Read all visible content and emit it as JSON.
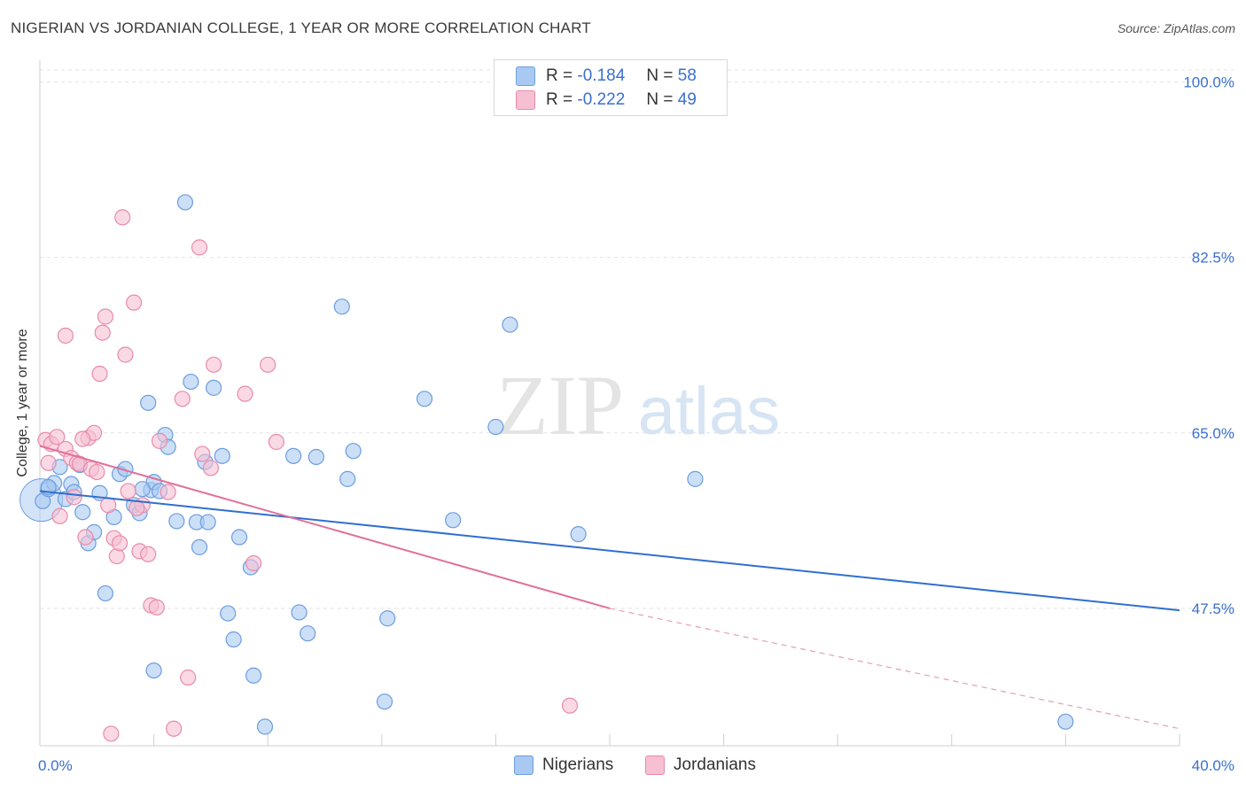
{
  "title": "NIGERIAN VS JORDANIAN COLLEGE, 1 YEAR OR MORE CORRELATION CHART",
  "source": "Source: ZipAtlas.com",
  "watermark": {
    "zip": "ZIP",
    "atlas": "atlas"
  },
  "legend": {
    "rows": [
      {
        "r_label": "R =",
        "r_value": "-0.184",
        "n_label": "N =",
        "n_value": "58",
        "color": "#a9c9f2",
        "stroke": "#6d9de0"
      },
      {
        "r_label": "R =",
        "r_value": "-0.222",
        "n_label": "N =",
        "n_value": "49",
        "color": "#f7c0d2",
        "stroke": "#e98aab"
      }
    ]
  },
  "bottom_legend": [
    {
      "label": "Nigerians",
      "color": "#a9c9f2",
      "stroke": "#6d9de0"
    },
    {
      "label": "Jordanians",
      "color": "#f7c0d2",
      "stroke": "#e98aab"
    }
  ],
  "chart_data": {
    "type": "scatter",
    "title": "NIGERIAN VS JORDANIAN COLLEGE, 1 YEAR OR MORE CORRELATION CHART",
    "xlabel": "",
    "ylabel": "College, 1 year or more",
    "xlim": [
      0,
      40
    ],
    "ylim": [
      33.8,
      101.2
    ],
    "x_tick_labels": [
      {
        "value": 0,
        "label": "0.0%"
      },
      {
        "value": 40,
        "label": "40.0%"
      }
    ],
    "y_tick_labels": [
      {
        "value": 100,
        "label": "100.0%"
      },
      {
        "value": 82.5,
        "label": "82.5%"
      },
      {
        "value": 65,
        "label": "65.0%"
      },
      {
        "value": 47.5,
        "label": "47.5%"
      }
    ],
    "series": [
      {
        "name": "Nigerians",
        "color": "#6d9de0",
        "fill": "#a9c9f2",
        "trend": {
          "x": [
            0,
            40
          ],
          "y": [
            59.2,
            47.3
          ],
          "color": "#2f6fcf"
        },
        "points": [
          [
            0.1,
            58.2
          ],
          [
            0.3,
            59.4
          ],
          [
            0.5,
            60.0
          ],
          [
            0.7,
            61.6
          ],
          [
            0.9,
            58.4
          ],
          [
            1.1,
            59.9
          ],
          [
            1.2,
            59.1
          ],
          [
            1.5,
            57.1
          ],
          [
            1.7,
            54.0
          ],
          [
            1.9,
            55.1
          ],
          [
            2.1,
            59.0
          ],
          [
            2.3,
            49.0
          ],
          [
            2.6,
            56.6
          ],
          [
            2.8,
            60.9
          ],
          [
            3.0,
            61.4
          ],
          [
            3.3,
            57.8
          ],
          [
            3.5,
            57.0
          ],
          [
            3.8,
            68.0
          ],
          [
            3.9,
            59.3
          ],
          [
            4.0,
            60.1
          ],
          [
            4.2,
            59.2
          ],
          [
            4.4,
            64.8
          ],
          [
            4.5,
            63.6
          ],
          [
            4.8,
            56.2
          ],
          [
            5.1,
            88.0
          ],
          [
            5.3,
            70.1
          ],
          [
            5.5,
            56.1
          ],
          [
            5.6,
            53.6
          ],
          [
            5.8,
            62.1
          ],
          [
            5.9,
            56.1
          ],
          [
            6.1,
            69.5
          ],
          [
            6.4,
            62.7
          ],
          [
            6.6,
            47.0
          ],
          [
            6.8,
            44.4
          ],
          [
            7.0,
            54.6
          ],
          [
            7.4,
            51.6
          ],
          [
            7.5,
            40.8
          ],
          [
            7.9,
            35.7
          ],
          [
            8.9,
            62.7
          ],
          [
            9.1,
            47.1
          ],
          [
            9.4,
            45.0
          ],
          [
            9.7,
            62.6
          ],
          [
            10.6,
            77.6
          ],
          [
            10.8,
            60.4
          ],
          [
            11.0,
            63.2
          ],
          [
            12.2,
            46.5
          ],
          [
            12.1,
            38.2
          ],
          [
            13.5,
            68.4
          ],
          [
            14.5,
            56.3
          ],
          [
            16.0,
            65.6
          ],
          [
            16.5,
            75.8
          ],
          [
            18.9,
            54.9
          ],
          [
            23.0,
            60.4
          ],
          [
            36.0,
            36.2
          ],
          [
            0.3,
            59.6
          ],
          [
            1.4,
            61.8
          ],
          [
            4.0,
            41.3
          ],
          [
            3.6,
            59.4
          ]
        ],
        "large_point": [
          0.05,
          58.3
        ]
      },
      {
        "name": "Jordanians",
        "color": "#e98aab",
        "fill": "#f7c0d2",
        "trend": {
          "x": [
            0,
            20
          ],
          "y": [
            63.7,
            47.5
          ],
          "color": "#e0709a"
        },
        "trend_extension": {
          "x": [
            20,
            40
          ],
          "y": [
            47.5,
            35.5
          ]
        },
        "points": [
          [
            0.2,
            64.3
          ],
          [
            0.4,
            63.9
          ],
          [
            0.6,
            64.6
          ],
          [
            0.7,
            56.7
          ],
          [
            0.9,
            63.4
          ],
          [
            1.1,
            62.5
          ],
          [
            1.2,
            58.6
          ],
          [
            1.3,
            62.0
          ],
          [
            1.4,
            61.9
          ],
          [
            1.6,
            54.6
          ],
          [
            1.7,
            64.5
          ],
          [
            1.8,
            61.4
          ],
          [
            1.9,
            65.0
          ],
          [
            2.0,
            61.1
          ],
          [
            2.1,
            70.9
          ],
          [
            2.2,
            75.0
          ],
          [
            2.3,
            76.6
          ],
          [
            2.4,
            57.8
          ],
          [
            2.5,
            35.0
          ],
          [
            2.6,
            54.5
          ],
          [
            2.7,
            52.7
          ],
          [
            2.9,
            86.5
          ],
          [
            3.0,
            72.8
          ],
          [
            3.1,
            59.2
          ],
          [
            3.3,
            78.0
          ],
          [
            3.5,
            53.2
          ],
          [
            3.6,
            57.8
          ],
          [
            3.8,
            52.9
          ],
          [
            3.9,
            47.8
          ],
          [
            4.1,
            47.6
          ],
          [
            4.2,
            64.2
          ],
          [
            4.5,
            59.1
          ],
          [
            4.7,
            35.5
          ],
          [
            5.0,
            68.4
          ],
          [
            5.2,
            40.6
          ],
          [
            5.6,
            83.5
          ],
          [
            5.7,
            62.9
          ],
          [
            6.0,
            61.5
          ],
          [
            6.1,
            71.8
          ],
          [
            7.2,
            68.9
          ],
          [
            7.5,
            52.0
          ],
          [
            8.0,
            71.8
          ],
          [
            8.3,
            64.1
          ],
          [
            18.6,
            37.8
          ],
          [
            0.9,
            74.7
          ],
          [
            1.5,
            64.4
          ],
          [
            2.8,
            54.0
          ],
          [
            0.3,
            62.0
          ],
          [
            3.4,
            57.5
          ]
        ]
      }
    ]
  }
}
